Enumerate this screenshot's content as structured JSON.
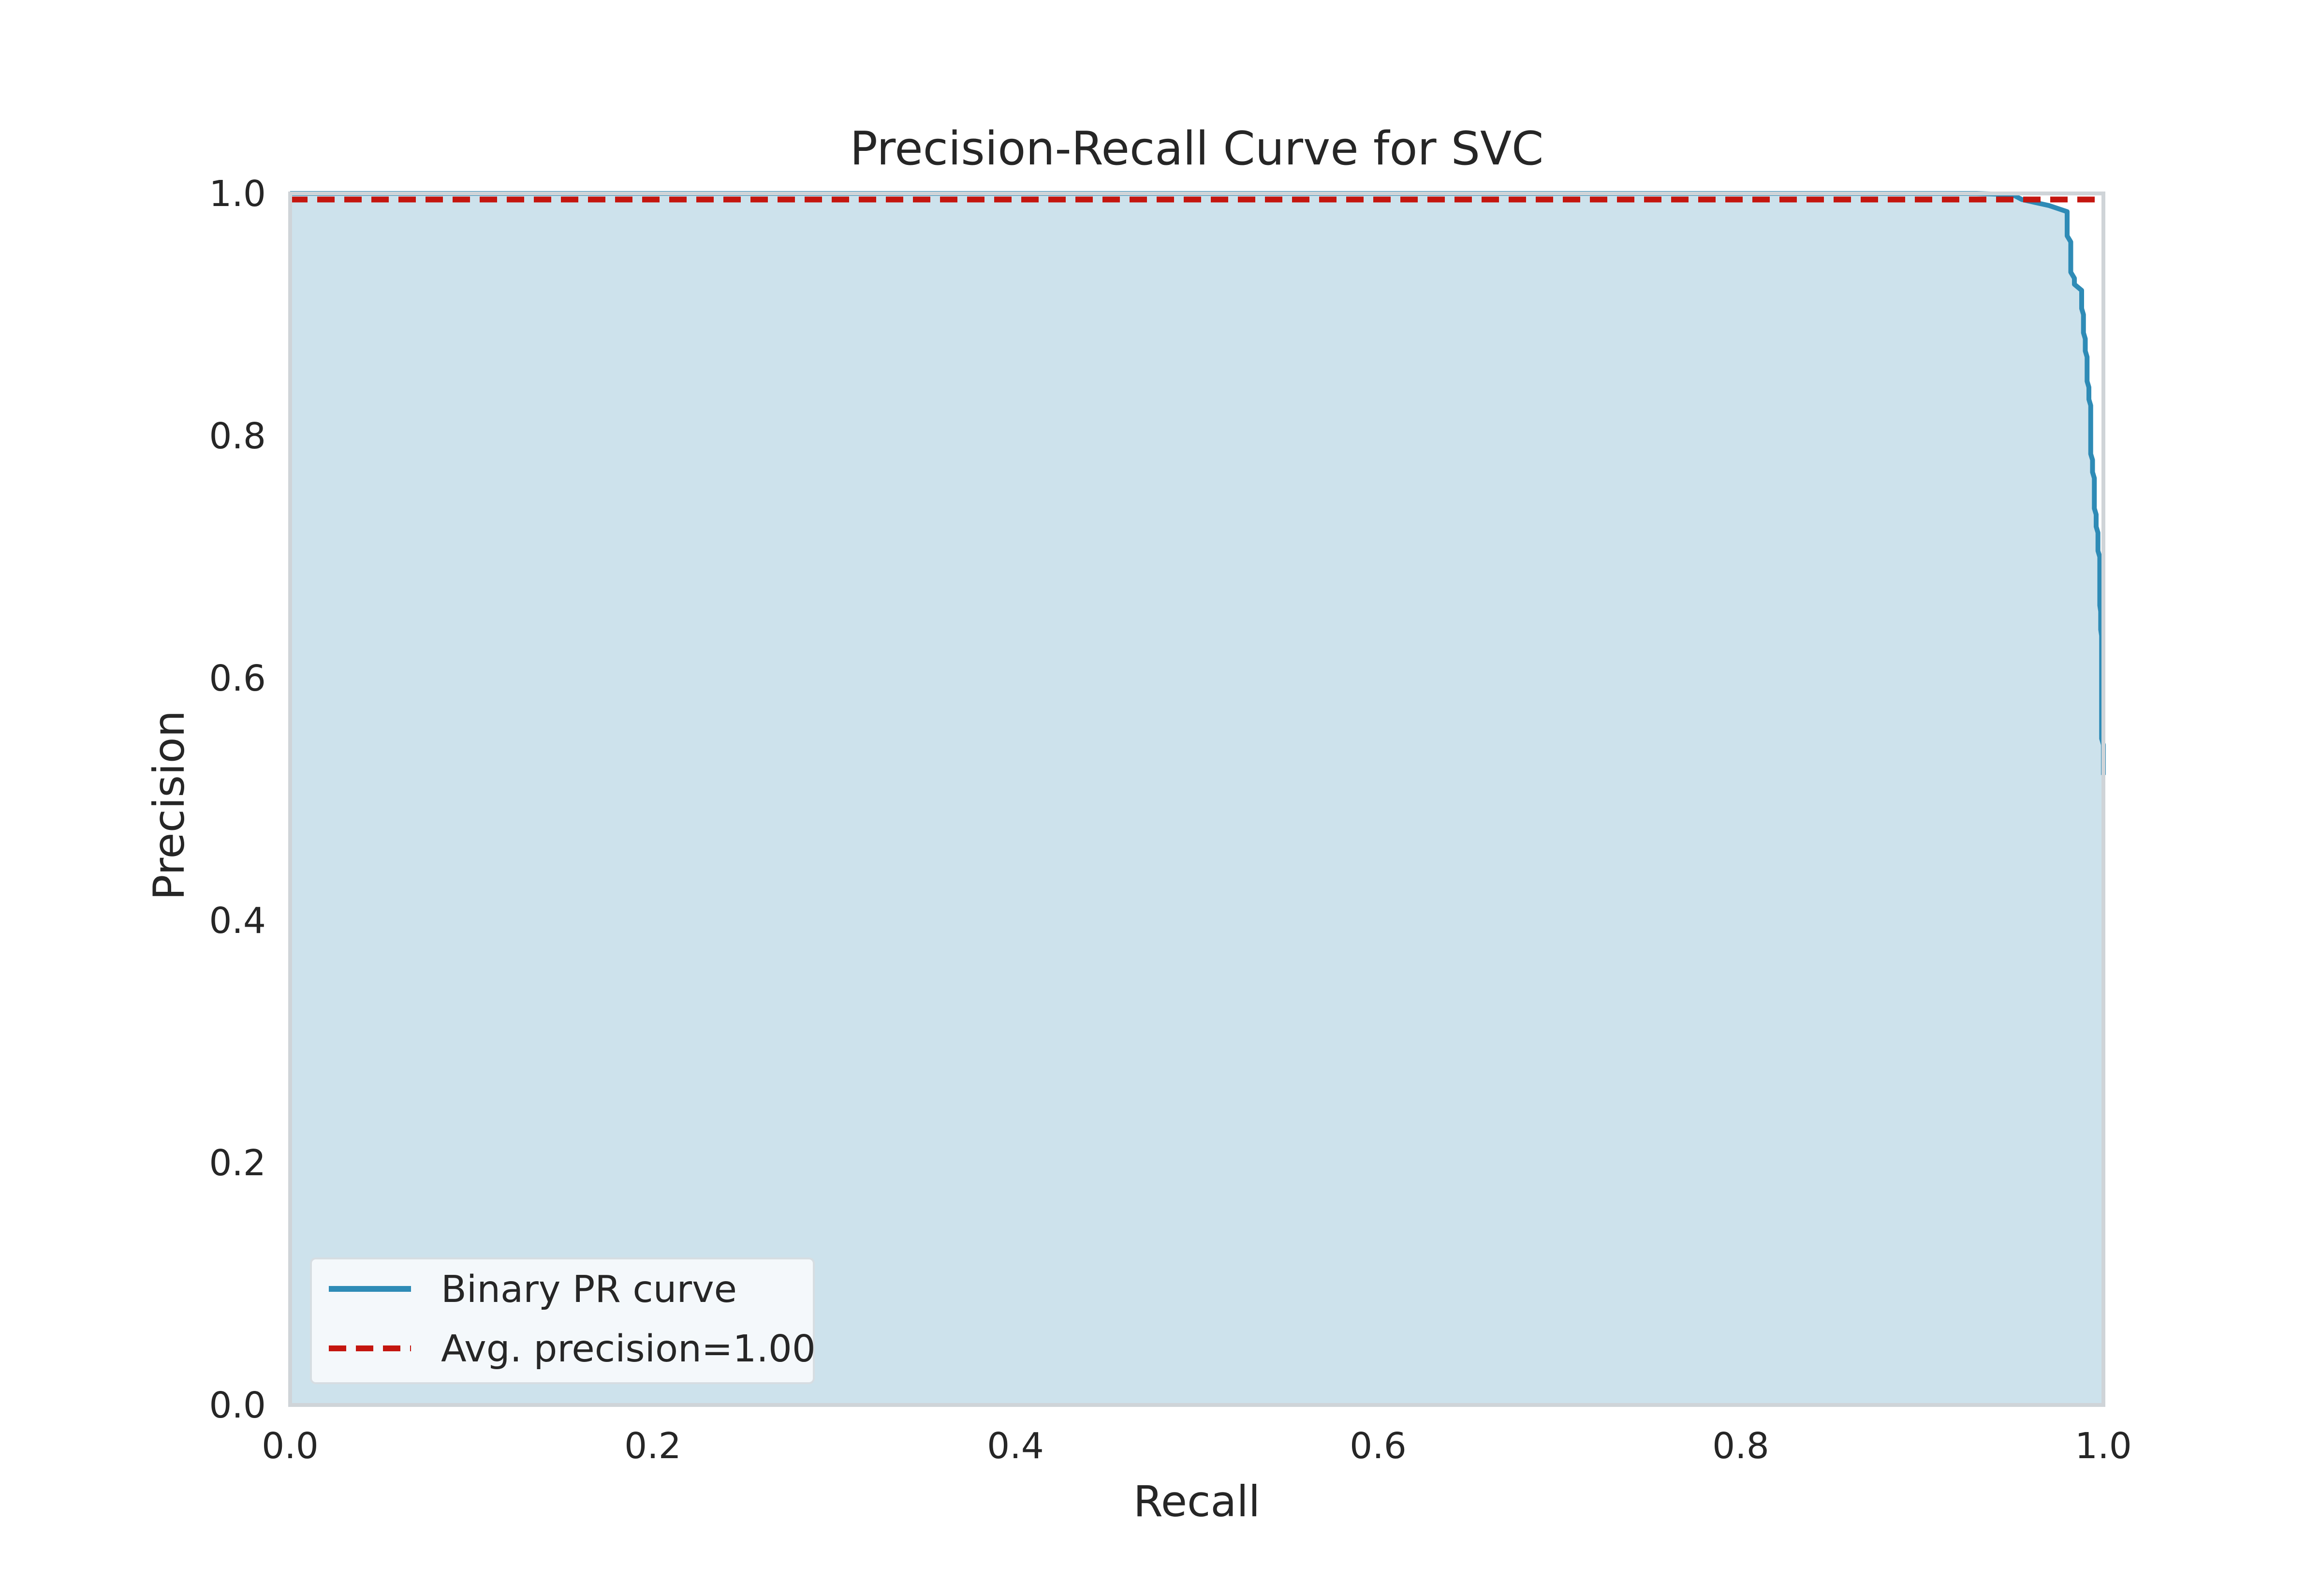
{
  "chart_data": {
    "type": "line",
    "title": "Precision-Recall Curve for SVC",
    "xlabel": "Recall",
    "ylabel": "Precision",
    "xlim": [
      0.0,
      1.0
    ],
    "ylim": [
      0.0,
      1.0
    ],
    "xticks": [
      "0.0",
      "0.2",
      "0.4",
      "0.6",
      "0.8",
      "1.0"
    ],
    "yticks": [
      "0.0",
      "0.2",
      "0.4",
      "0.6",
      "0.8",
      "1.0"
    ],
    "grid": false,
    "legend_position": "lower-left",
    "fill_under_curve": true,
    "series": [
      {
        "name": "Binary PR curve",
        "style": "solid",
        "color": "#2e8bb6",
        "fill_color": "#cde2ec",
        "x": [
          0.0,
          0.93,
          0.95,
          0.955,
          0.97,
          0.98,
          0.98,
          0.98,
          0.982,
          0.982,
          0.984,
          0.984,
          0.988,
          0.988,
          0.989,
          0.989,
          0.99,
          0.99,
          0.991,
          0.991,
          0.992,
          0.992,
          0.993,
          0.993,
          0.994,
          0.994,
          0.995,
          0.995,
          0.996,
          0.996,
          0.997,
          0.997,
          0.998,
          0.998,
          0.9985,
          0.9985,
          0.999,
          0.999,
          1.0,
          1.0
        ],
        "y": [
          1.0,
          1.0,
          0.999,
          0.995,
          0.99,
          0.985,
          0.975,
          0.965,
          0.96,
          0.935,
          0.93,
          0.925,
          0.92,
          0.905,
          0.9,
          0.885,
          0.88,
          0.87,
          0.865,
          0.845,
          0.84,
          0.83,
          0.825,
          0.785,
          0.78,
          0.77,
          0.765,
          0.74,
          0.735,
          0.725,
          0.72,
          0.705,
          0.7,
          0.66,
          0.655,
          0.64,
          0.635,
          0.55,
          0.545,
          0.52
        ]
      },
      {
        "name": "Avg. precision=1.00",
        "style": "dashed",
        "color": "#c4160f",
        "x": [
          0.0,
          1.0
        ],
        "y": [
          0.995,
          0.995
        ]
      }
    ]
  }
}
